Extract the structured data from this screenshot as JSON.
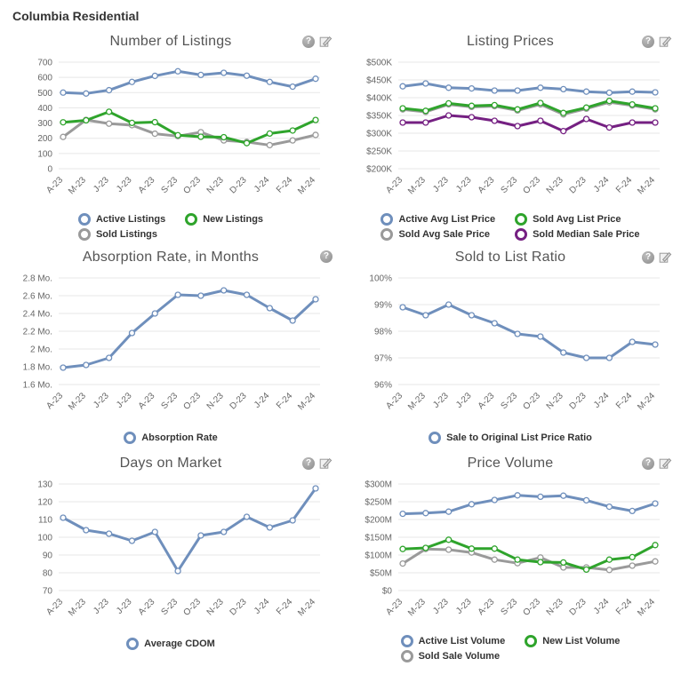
{
  "page_title": "Columbia Residential",
  "colors": {
    "blue": "#6f8fbc",
    "green": "#2fa42c",
    "gray": "#9a9a9a",
    "purple": "#752082",
    "gridline": "#e7e7e7",
    "tick_text": "#666666",
    "title_text": "#555555"
  },
  "icon_glyphs": {
    "help": "?"
  },
  "chart_data": [
    {
      "type": "line",
      "title": "Number of Listings",
      "categories": [
        "A-23",
        "M-23",
        "J-23",
        "J-23",
        "A-23",
        "S-23",
        "O-23",
        "N-23",
        "D-23",
        "J-24",
        "F-24",
        "M-24"
      ],
      "ylim": [
        0,
        700
      ],
      "ytick_values": [
        0,
        100,
        200,
        300,
        400,
        500,
        600,
        700
      ],
      "ytick_labels": [
        "0",
        "100",
        "200",
        "300",
        "400",
        "500",
        "600",
        "700"
      ],
      "grid": true,
      "legend_position": "bottom",
      "icons": [
        "help-icon",
        "edit-icon"
      ],
      "series": [
        {
          "name": "Active Listings",
          "color": "#6f8fbc",
          "values": [
            500,
            494,
            516,
            570,
            610,
            640,
            616,
            630,
            611,
            570,
            539,
            591
          ]
        },
        {
          "name": "New Listings",
          "color": "#2fa42c",
          "values": [
            305,
            318,
            374,
            301,
            306,
            220,
            210,
            207,
            168,
            231,
            251,
            320
          ]
        },
        {
          "name": "Sold Listings",
          "color": "#9a9a9a",
          "values": [
            209,
            321,
            296,
            286,
            230,
            214,
            240,
            186,
            176,
            155,
            186,
            222
          ]
        }
      ],
      "draw_order": [
        0,
        2,
        1
      ]
    },
    {
      "type": "line",
      "title": "Listing Prices",
      "categories": [
        "A-23",
        "M-23",
        "J-23",
        "J-23",
        "A-23",
        "S-23",
        "O-23",
        "N-23",
        "D-23",
        "J-24",
        "F-24",
        "M-24"
      ],
      "ylim": [
        200000,
        500000
      ],
      "ytick_values": [
        200000,
        250000,
        300000,
        350000,
        400000,
        450000,
        500000
      ],
      "ytick_labels": [
        "$200K",
        "$250K",
        "$300K",
        "$350K",
        "$400K",
        "$450K",
        "$500K"
      ],
      "grid": true,
      "legend_position": "bottom",
      "icons": [
        "help-icon",
        "edit-icon"
      ],
      "series": [
        {
          "name": "Active Avg List Price",
          "color": "#6f8fbc",
          "values": [
            432000,
            440000,
            428000,
            426000,
            420000,
            420000,
            428000,
            424000,
            417000,
            414000,
            417000,
            415000
          ]
        },
        {
          "name": "Sold Avg List Price",
          "color": "#2fa42c",
          "values": [
            370000,
            363000,
            384000,
            377000,
            379000,
            367000,
            385000,
            357000,
            372000,
            391000,
            381000,
            370000
          ]
        },
        {
          "name": "Sold Avg Sale Price",
          "color": "#9a9a9a",
          "values": [
            367000,
            360000,
            381000,
            374000,
            376000,
            364000,
            381000,
            353000,
            369000,
            387000,
            378000,
            367000
          ]
        },
        {
          "name": "Sold Median Sale Price",
          "color": "#752082",
          "values": [
            330000,
            330000,
            350000,
            345000,
            335000,
            320000,
            335000,
            306000,
            340000,
            316000,
            330000,
            330000
          ]
        }
      ],
      "draw_order": [
        0,
        2,
        1,
        3
      ]
    },
    {
      "type": "line",
      "title": "Absorption Rate, in Months",
      "categories": [
        "A-23",
        "M-23",
        "J-23",
        "J-23",
        "A-23",
        "S-23",
        "O-23",
        "N-23",
        "D-23",
        "J-24",
        "F-24",
        "M-24"
      ],
      "ylim": [
        1.6,
        2.8
      ],
      "ytick_values": [
        1.6,
        1.8,
        2.0,
        2.2,
        2.4,
        2.6,
        2.8
      ],
      "ytick_labels": [
        "1.6 Mo.",
        "1.8 Mo.",
        "2 Mo.",
        "2.2 Mo.",
        "2.4 Mo.",
        "2.6 Mo.",
        "2.8 Mo."
      ],
      "grid": true,
      "legend_position": "bottom",
      "icons": [
        "help-icon"
      ],
      "series": [
        {
          "name": "Absorption Rate",
          "color": "#6f8fbc",
          "values": [
            1.79,
            1.82,
            1.9,
            2.18,
            2.4,
            2.61,
            2.6,
            2.66,
            2.61,
            2.46,
            2.32,
            2.56
          ]
        }
      ],
      "draw_order": [
        0
      ]
    },
    {
      "type": "line",
      "title": "Sold to List Ratio",
      "categories": [
        "A-23",
        "M-23",
        "J-23",
        "J-23",
        "A-23",
        "S-23",
        "O-23",
        "N-23",
        "D-23",
        "J-24",
        "F-24",
        "M-24"
      ],
      "ylim": [
        96,
        100
      ],
      "ytick_values": [
        96,
        97,
        98,
        99,
        100
      ],
      "ytick_labels": [
        "96%",
        "97%",
        "98%",
        "99%",
        "100%"
      ],
      "grid": true,
      "legend_position": "bottom",
      "icons": [
        "help-icon",
        "edit-icon"
      ],
      "series": [
        {
          "name": "Sale to Original List Price Ratio",
          "color": "#6f8fbc",
          "values": [
            98.9,
            98.6,
            99.0,
            98.6,
            98.3,
            97.9,
            97.8,
            97.2,
            97.0,
            97.0,
            97.6,
            97.5
          ]
        }
      ],
      "draw_order": [
        0
      ]
    },
    {
      "type": "line",
      "title": "Days on Market",
      "categories": [
        "A-23",
        "M-23",
        "J-23",
        "J-23",
        "A-23",
        "S-23",
        "O-23",
        "N-23",
        "D-23",
        "J-24",
        "F-24",
        "M-24"
      ],
      "ylim": [
        70,
        130
      ],
      "ytick_values": [
        70,
        80,
        90,
        100,
        110,
        120,
        130
      ],
      "ytick_labels": [
        "70",
        "80",
        "90",
        "100",
        "110",
        "120",
        "130"
      ],
      "grid": true,
      "legend_position": "bottom",
      "icons": [
        "help-icon",
        "edit-icon"
      ],
      "series": [
        {
          "name": "Average CDOM",
          "color": "#6f8fbc",
          "values": [
            111,
            104,
            102,
            98,
            103,
            81,
            101,
            103,
            111.5,
            105.5,
            109.5,
            127.5
          ]
        }
      ],
      "draw_order": [
        0
      ]
    },
    {
      "type": "line",
      "title": "Price Volume",
      "categories": [
        "A-23",
        "M-23",
        "J-23",
        "J-23",
        "A-23",
        "S-23",
        "O-23",
        "N-23",
        "D-23",
        "J-24",
        "F-24",
        "M-24"
      ],
      "ylim": [
        0,
        300000000
      ],
      "ytick_values": [
        0,
        50000000,
        100000000,
        150000000,
        200000000,
        250000000,
        300000000
      ],
      "ytick_labels": [
        "$0",
        "$50M",
        "$100M",
        "$150M",
        "$200M",
        "$250M",
        "$300M"
      ],
      "grid": true,
      "legend_position": "bottom",
      "icons": [
        "help-icon",
        "edit-icon"
      ],
      "series": [
        {
          "name": "Active List Volume",
          "color": "#6f8fbc",
          "values": [
            216000000,
            218000000,
            222000000,
            243000000,
            255000000,
            268000000,
            264000000,
            267000000,
            254000000,
            236000000,
            224000000,
            245000000
          ]
        },
        {
          "name": "New List Volume",
          "color": "#2fa42c",
          "values": [
            117000000,
            120000000,
            143000000,
            118000000,
            118000000,
            87000000,
            80000000,
            79000000,
            59000000,
            87000000,
            94000000,
            128000000
          ]
        },
        {
          "name": "Sold Sale Volume",
          "color": "#9a9a9a",
          "values": [
            76000000,
            117000000,
            115000000,
            107000000,
            87000000,
            77000000,
            93000000,
            65000000,
            65000000,
            58000000,
            70000000,
            82000000
          ]
        }
      ],
      "draw_order": [
        0,
        2,
        1
      ]
    }
  ]
}
